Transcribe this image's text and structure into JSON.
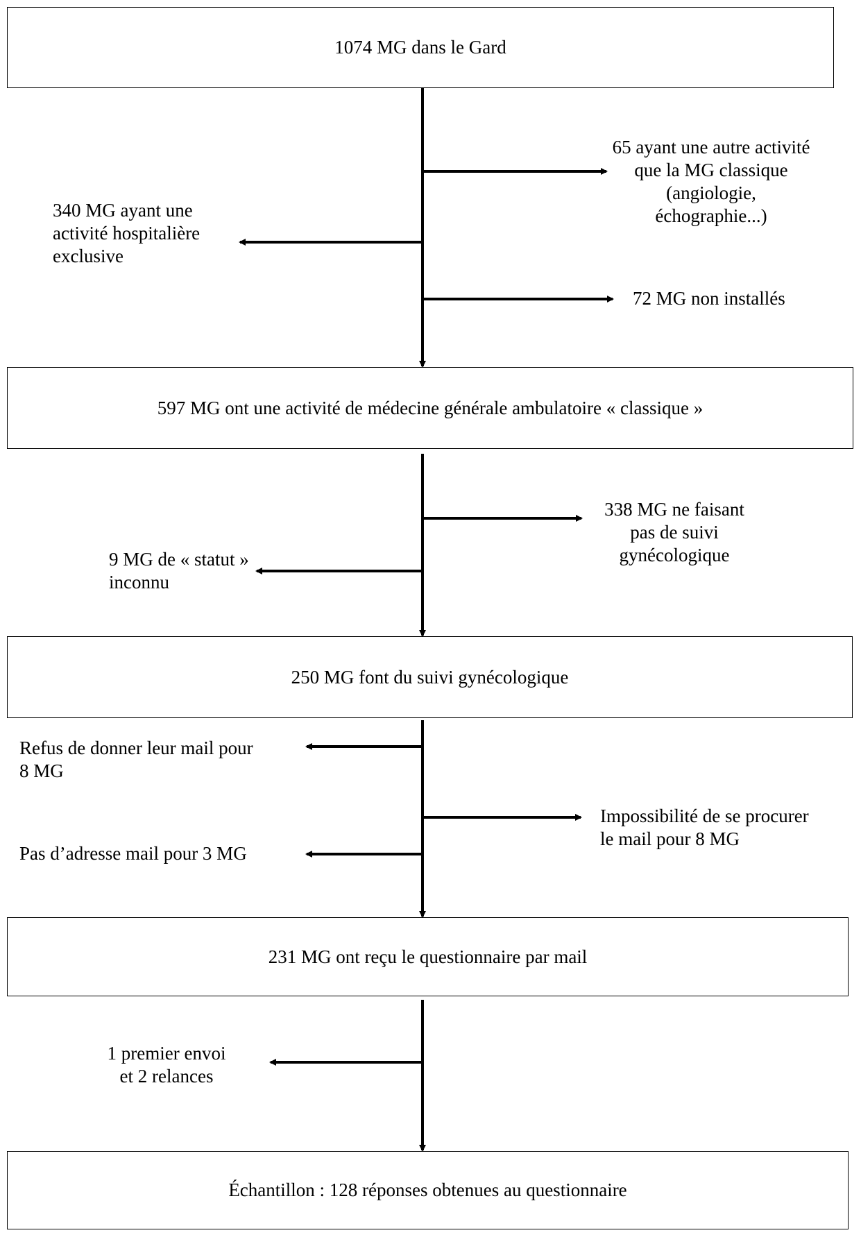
{
  "boxes": {
    "b1": "1074 MG dans le Gard",
    "b2": "597 MG ont une activité de médecine générale ambulatoire « classique »",
    "b3": "250 MG font du suivi gynécologique",
    "b4": "231 MG ont reçu le questionnaire par mail",
    "b5": "Échantillon : 128 réponses obtenues au questionnaire"
  },
  "exclusions": {
    "e1_l1": "65 ayant une autre activité",
    "e1_l2": "que la MG classique",
    "e1_l3": "(angiologie,",
    "e1_l4": "échographie...)",
    "e2_l1": "340 MG ayant une",
    "e2_l2": "activité hospitalière",
    "e2_l3": "exclusive",
    "e3": "72 MG non installés",
    "e4_l1": "338 MG ne faisant",
    "e4_l2": "pas de suivi",
    "e4_l3": "gynécologique",
    "e5_l1": "9 MG de « statut »",
    "e5_l2": "inconnu",
    "e6_l1": "Refus de donner leur mail pour",
    "e6_l2": "8 MG",
    "e7_l1": "Impossibilité de se procurer",
    "e7_l2": "le mail pour 8 MG",
    "e8": "Pas d’adresse mail pour 3 MG",
    "e9_l1": "1 premier envoi",
    "e9_l2": "et 2 relances"
  }
}
